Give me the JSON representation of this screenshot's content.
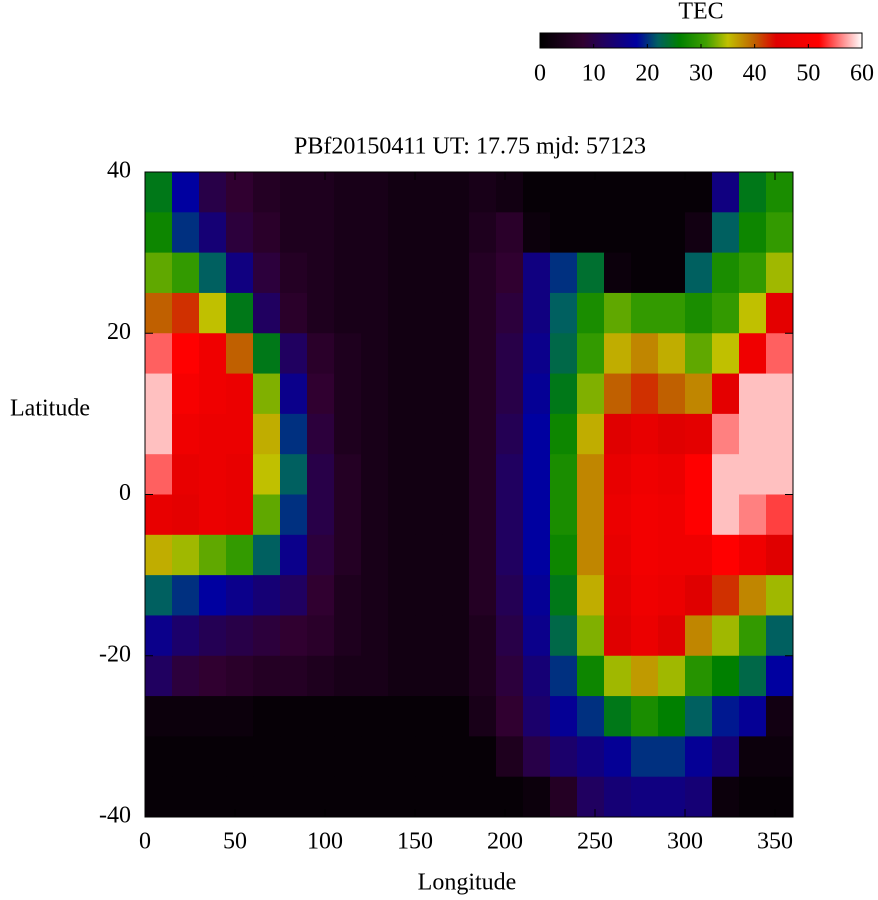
{
  "chart_data": {
    "type": "heatmap",
    "title": "PBf20150411  UT: 17.75  mjd: 57123",
    "xlabel": "Longitude",
    "ylabel": "Latitude",
    "colorbar_label": "TEC",
    "xlim": [
      0,
      360
    ],
    "ylim": [
      -40,
      40
    ],
    "xticks": [
      0,
      50,
      100,
      150,
      200,
      250,
      300,
      350
    ],
    "yticks": [
      -40,
      -20,
      0,
      20,
      40
    ],
    "clim": [
      0,
      60
    ],
    "cticks": [
      0,
      10,
      20,
      30,
      40,
      50,
      60
    ],
    "colorscale": [
      [
        0,
        "#000000"
      ],
      [
        8,
        "#300030"
      ],
      [
        12,
        "#200060"
      ],
      [
        18,
        "#0000a0"
      ],
      [
        22,
        "#006060"
      ],
      [
        26,
        "#008000"
      ],
      [
        31,
        "#40a000"
      ],
      [
        35,
        "#c0c000"
      ],
      [
        40,
        "#c06000"
      ],
      [
        44,
        "#e00000"
      ],
      [
        52,
        "#ff0000"
      ],
      [
        56,
        "#ff8080"
      ],
      [
        60,
        "#ffffff"
      ]
    ],
    "x": [
      7.5,
      22.5,
      37.5,
      52.5,
      67.5,
      82.5,
      97.5,
      112.5,
      127.5,
      142.5,
      157.5,
      172.5,
      187.5,
      202.5,
      217.5,
      232.5,
      247.5,
      262.5,
      277.5,
      292.5,
      307.5,
      322.5,
      337.5,
      352.5
    ],
    "y": [
      37.5,
      32.5,
      27.5,
      22.5,
      17.5,
      12.5,
      7.5,
      2.5,
      -2.5,
      -7.5,
      -12.5,
      -17.5,
      -22.5,
      -27.5,
      -32.5,
      -37.5
    ],
    "z": [
      [
        25,
        18,
        10,
        8,
        6,
        5,
        5,
        4,
        4,
        3,
        3,
        3,
        4,
        3,
        1,
        1,
        1,
        1,
        1,
        1,
        1,
        15,
        25,
        28
      ],
      [
        27,
        20,
        14,
        9,
        7,
        5,
        5,
        4,
        4,
        3,
        3,
        3,
        5,
        7,
        2,
        1,
        1,
        1,
        1,
        1,
        3,
        22,
        27,
        30
      ],
      [
        32,
        30,
        22,
        15,
        9,
        6,
        5,
        4,
        4,
        3,
        3,
        3,
        6,
        8,
        15,
        20,
        24,
        2,
        1,
        1,
        22,
        28,
        30,
        34
      ],
      [
        40,
        42,
        35,
        25,
        12,
        7,
        5,
        4,
        4,
        3,
        3,
        3,
        6,
        9,
        15,
        22,
        28,
        32,
        30,
        30,
        28,
        30,
        35,
        45
      ],
      [
        55,
        52,
        48,
        40,
        25,
        12,
        7,
        5,
        4,
        3,
        3,
        3,
        6,
        10,
        16,
        23,
        30,
        36,
        38,
        36,
        32,
        35,
        48,
        55
      ],
      [
        58,
        50,
        48,
        47,
        33,
        16,
        8,
        5,
        4,
        3,
        3,
        3,
        6,
        10,
        17,
        25,
        33,
        40,
        42,
        40,
        38,
        45,
        58,
        58
      ],
      [
        58,
        48,
        47,
        47,
        36,
        20,
        9,
        5,
        4,
        3,
        3,
        3,
        6,
        11,
        18,
        27,
        36,
        44,
        46,
        44,
        45,
        56,
        58,
        58
      ],
      [
        55,
        46,
        47,
        46,
        35,
        22,
        10,
        6,
        4,
        3,
        3,
        3,
        6,
        12,
        18,
        28,
        38,
        46,
        48,
        47,
        52,
        58,
        58,
        58
      ],
      [
        46,
        45,
        47,
        46,
        32,
        20,
        10,
        6,
        4,
        3,
        3,
        3,
        6,
        12,
        18,
        28,
        38,
        47,
        49,
        48,
        52,
        58,
        56,
        54
      ],
      [
        36,
        34,
        32,
        30,
        22,
        16,
        9,
        6,
        4,
        3,
        3,
        3,
        6,
        12,
        18,
        27,
        38,
        46,
        49,
        48,
        48,
        52,
        48,
        44
      ],
      [
        22,
        20,
        18,
        16,
        14,
        12,
        8,
        5,
        4,
        3,
        3,
        3,
        6,
        11,
        17,
        25,
        36,
        45,
        48,
        47,
        44,
        42,
        38,
        34
      ],
      [
        16,
        13,
        11,
        10,
        9,
        8,
        7,
        5,
        4,
        3,
        3,
        3,
        5,
        10,
        16,
        23,
        33,
        44,
        47,
        44,
        38,
        34,
        30,
        22
      ],
      [
        12,
        9,
        8,
        7,
        6,
        6,
        5,
        4,
        4,
        3,
        3,
        3,
        5,
        9,
        14,
        20,
        27,
        34,
        37,
        34,
        29,
        26,
        23,
        18
      ],
      [
        2,
        2,
        2,
        2,
        1,
        1,
        1,
        1,
        1,
        1,
        1,
        1,
        4,
        8,
        13,
        17,
        20,
        25,
        28,
        26,
        22,
        19,
        17,
        3
      ],
      [
        1,
        1,
        1,
        1,
        1,
        1,
        1,
        1,
        1,
        1,
        1,
        1,
        1,
        5,
        10,
        13,
        15,
        17,
        20,
        20,
        17,
        14,
        2,
        2
      ],
      [
        1,
        1,
        1,
        1,
        1,
        1,
        1,
        1,
        1,
        1,
        1,
        1,
        1,
        1,
        2,
        6,
        12,
        14,
        15,
        15,
        14,
        2,
        1,
        1
      ]
    ]
  }
}
